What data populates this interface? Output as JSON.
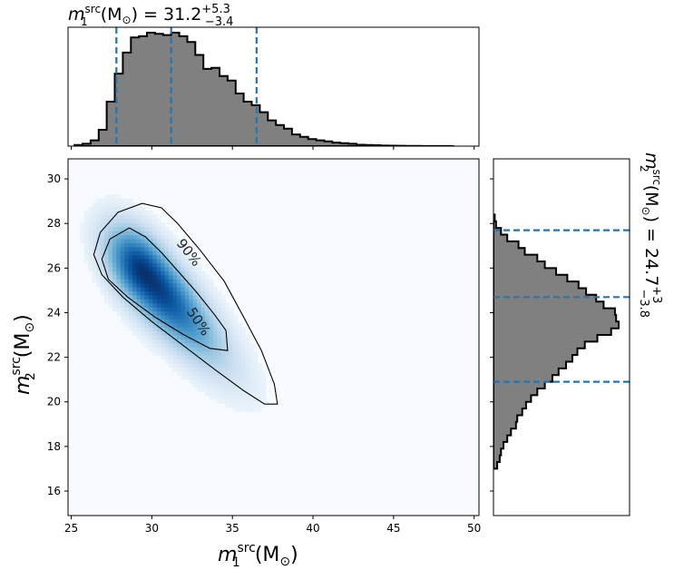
{
  "chart_data": [
    {
      "type": "heatmap",
      "name": "joint",
      "xlabel_text": "m",
      "xlabel_sup": "src",
      "xlabel_sub": "1",
      "xlabel_unit": "(M",
      "xlabel_sun": "⊙",
      "xlabel_close": ")",
      "ylabel_text": "m",
      "ylabel_sup": "src",
      "ylabel_sub": "2",
      "ylabel_unit": "(M",
      "ylabel_sun": "⊙",
      "ylabel_close": ")",
      "xlim": [
        24.8,
        50.3
      ],
      "ylim": [
        14.9,
        30.9
      ],
      "xticks": [
        25,
        30,
        35,
        40,
        45,
        50
      ],
      "xtick_labels": [
        "25",
        "30",
        "35",
        "40",
        "45",
        "50"
      ],
      "yticks": [
        16,
        18,
        20,
        22,
        24,
        26,
        28,
        30
      ],
      "ytick_labels": [
        "16",
        "18",
        "20",
        "22",
        "24",
        "26",
        "28",
        "30"
      ],
      "colormap": "Blues",
      "density_peak": {
        "m1": 29.5,
        "m2": 25.8
      },
      "contours": [
        {
          "label": "90%",
          "points": [
            [
              27.9,
              28.5
            ],
            [
              29.4,
              28.9
            ],
            [
              30.6,
              28.7
            ],
            [
              31.6,
              28.0
            ],
            [
              33.0,
              26.8
            ],
            [
              34.5,
              25.4
            ],
            [
              35.7,
              23.8
            ],
            [
              36.8,
              22.3
            ],
            [
              37.6,
              20.8
            ],
            [
              37.8,
              19.9
            ],
            [
              37.0,
              19.9
            ],
            [
              35.7,
              20.5
            ],
            [
              34.0,
              21.4
            ],
            [
              32.0,
              22.5
            ],
            [
              30.0,
              23.6
            ],
            [
              28.2,
              24.7
            ],
            [
              26.9,
              25.7
            ],
            [
              26.4,
              26.6
            ],
            [
              26.8,
              27.6
            ],
            [
              27.9,
              28.5
            ]
          ],
          "label_at": {
            "m1": 32.3,
            "m2": 26.7
          },
          "label_angle": 52
        },
        {
          "label": "50%",
          "points": [
            [
              28.6,
              27.8
            ],
            [
              29.6,
              27.4
            ],
            [
              30.6,
              26.7
            ],
            [
              31.7,
              25.8
            ],
            [
              32.8,
              24.9
            ],
            [
              33.9,
              23.9
            ],
            [
              34.6,
              23.2
            ],
            [
              34.7,
              22.3
            ],
            [
              33.6,
              22.4
            ],
            [
              32.0,
              23.0
            ],
            [
              30.2,
              23.8
            ],
            [
              28.5,
              24.7
            ],
            [
              27.3,
              25.5
            ],
            [
              26.9,
              26.4
            ],
            [
              27.4,
              27.3
            ],
            [
              28.6,
              27.8
            ]
          ],
          "label_at": {
            "m1": 32.9,
            "m2": 23.6
          },
          "label_angle": 56
        }
      ]
    },
    {
      "type": "area",
      "name": "m1_marginal",
      "title_main": "m",
      "title_sup": "src",
      "title_sub": "1",
      "title_unit": "(M",
      "title_sun": "⊙",
      "title_eq": ") = 31.2",
      "title_upper": "+5.3",
      "title_lower": "−3.4",
      "xlim": [
        24.8,
        50.3
      ],
      "bin_edges_start": 25.2,
      "bin_width": 0.5,
      "counts": [
        0.01,
        0.02,
        0.05,
        0.14,
        0.38,
        0.62,
        0.8,
        0.93,
        0.94,
        0.97,
        0.96,
        0.95,
        0.97,
        0.94,
        0.89,
        0.78,
        0.66,
        0.67,
        0.6,
        0.56,
        0.45,
        0.38,
        0.35,
        0.29,
        0.22,
        0.18,
        0.15,
        0.1,
        0.08,
        0.06,
        0.05,
        0.04,
        0.03,
        0.025,
        0.02,
        0.012,
        0.01,
        0.008,
        0.005,
        0.004,
        0.003,
        0.002,
        0.002,
        0.001,
        0.001,
        0.001,
        0.001
      ],
      "quantile_lines": [
        27.8,
        31.2,
        36.5
      ],
      "line_color": "#1f77b4"
    },
    {
      "type": "area",
      "name": "m2_marginal",
      "title_main": "m",
      "title_sup": "src",
      "title_sub": "2",
      "title_unit": "(M",
      "title_sun": "⊙",
      "title_eq": ") = 24.7",
      "title_upper": "+3",
      "title_lower": "−3.8",
      "ylim": [
        14.9,
        30.9
      ],
      "bin_edges_start": 17.0,
      "bin_width": 0.3,
      "counts": [
        0.03,
        0.05,
        0.06,
        0.08,
        0.11,
        0.14,
        0.18,
        0.19,
        0.23,
        0.26,
        0.3,
        0.35,
        0.41,
        0.47,
        0.52,
        0.58,
        0.63,
        0.67,
        0.73,
        0.83,
        0.94,
        1.0,
        0.98,
        0.97,
        0.88,
        0.82,
        0.74,
        0.68,
        0.59,
        0.5,
        0.41,
        0.35,
        0.25,
        0.2,
        0.11,
        0.06,
        0.02,
        0.01
      ],
      "quantile_lines": [
        20.9,
        24.7,
        27.7
      ],
      "line_color": "#1f77b4"
    }
  ],
  "colors": {
    "hist_fill": "#808080",
    "hist_edge": "#000000",
    "quantile": "#1f77b4",
    "contour": "#000000"
  }
}
